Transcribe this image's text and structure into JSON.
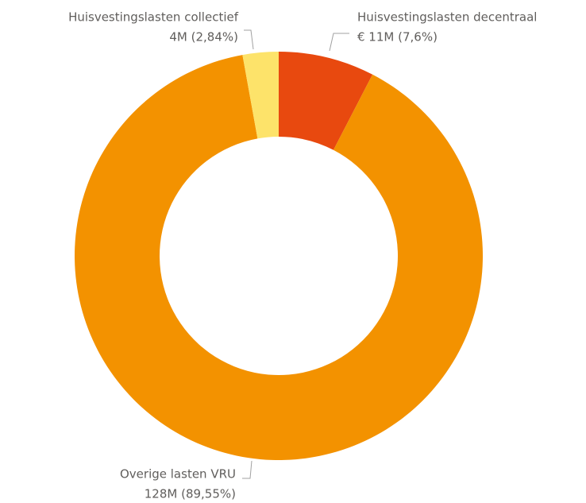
{
  "chart_data": {
    "type": "donut",
    "categories": [
      "Huisvestingslasten decentraal",
      "Overige lasten VRU",
      "Huisvestingslasten collectief"
    ],
    "values": [
      7.6,
      89.55,
      2.84
    ],
    "value_labels": [
      "€ 11M (7,6%)",
      "128M (89,55%)",
      "4M (2,84%)"
    ],
    "colors": [
      "#e8490f",
      "#f39200",
      "#fde36a"
    ]
  }
}
